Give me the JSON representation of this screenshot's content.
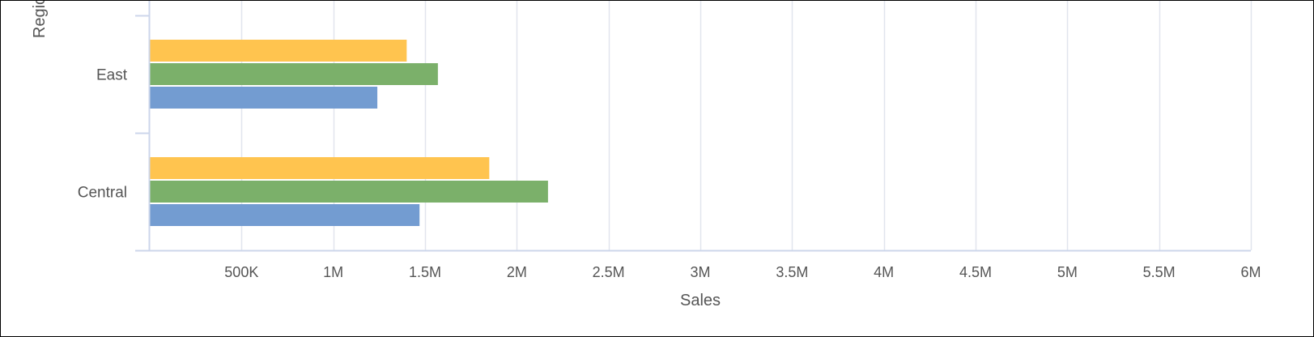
{
  "chart_data": {
    "type": "bar",
    "orientation": "horizontal",
    "categories": [
      "Central",
      "East"
    ],
    "series": [
      {
        "values": [
          1850000,
          1400000
        ],
        "color": "#ffc44f"
      },
      {
        "values": [
          2170000,
          1570000
        ],
        "color": "#7bb06a"
      },
      {
        "values": [
          1470000,
          1240000
        ],
        "color": "#739cd1"
      }
    ],
    "title": "",
    "xlabel": "Sales",
    "ylabel": "Regio",
    "xlim": [
      0,
      6000000
    ],
    "x_ticks": [
      500000,
      1000000,
      1500000,
      2000000,
      2500000,
      3000000,
      3500000,
      4000000,
      4500000,
      5000000,
      5500000,
      6000000
    ],
    "x_tick_labels": [
      "500K",
      "1M",
      "1.5M",
      "2M",
      "2.5M",
      "3M",
      "3.5M",
      "4M",
      "4.5M",
      "5M",
      "5.5M",
      "6M"
    ],
    "grid": "vertical",
    "legend": "none"
  },
  "colors": {
    "grid": "#e1e5ee",
    "axis": "#ccd6eb",
    "label": "#555555"
  }
}
